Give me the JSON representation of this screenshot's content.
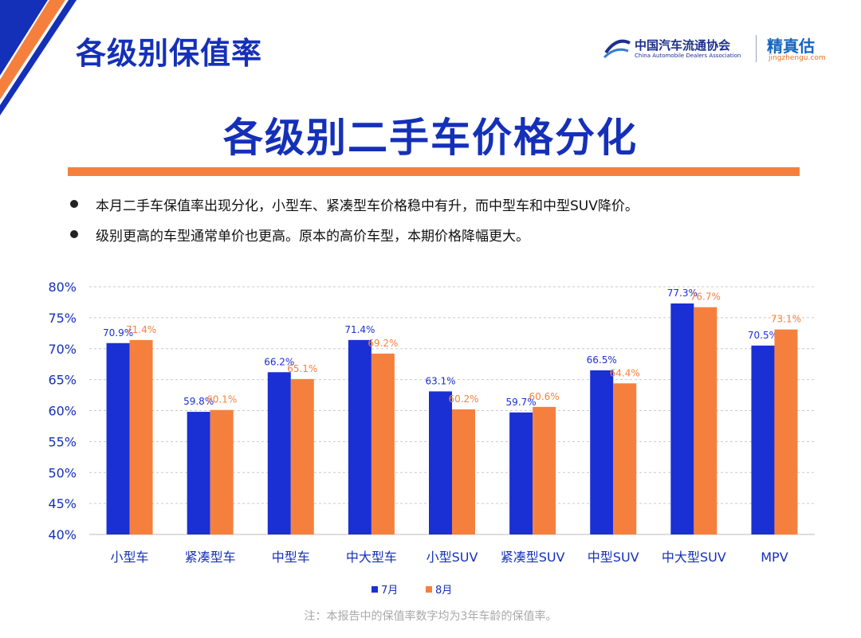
{
  "header": {
    "page_title": "各级别保值率",
    "logo_cada_cn": "中国汽车流通协会",
    "logo_cada_en": "China Automobile Dealers Association",
    "logo_jzg_cn": "精真估",
    "logo_jzg_url": "jingzhengu.com"
  },
  "main_title": "各级别二手车价格分化",
  "bullets": [
    "本月二手车保值率出现分化，小型车、紧凑型车价格稳中有升，而中型车和中型SUV降价。",
    "级别更高的车型通常单价也更高。原本的高价车型，本期价格降幅更大。"
  ],
  "note": "注：本报告中的保值率数字均为3年车龄的保值率。",
  "colors": {
    "brand_blue": "#1530b8",
    "series_july": "#1a2fd4",
    "series_august": "#f5803e",
    "accent_orange": "#f5803e"
  },
  "chart_data": {
    "type": "bar",
    "categories": [
      "小型车",
      "紧凑型车",
      "中型车",
      "中大型车",
      "小型SUV",
      "紧凑型SUV",
      "中型SUV",
      "中大型SUV",
      "MPV"
    ],
    "series": [
      {
        "name": "7月",
        "values": [
          70.9,
          59.8,
          66.2,
          71.4,
          63.1,
          59.7,
          66.5,
          77.3,
          70.5
        ],
        "labels": [
          "70.9%",
          "59.8%",
          "66.2%",
          "71.4%",
          "63.1%",
          "59.7%",
          "66.5%",
          "77.3%",
          "70.5%"
        ]
      },
      {
        "name": "8月",
        "values": [
          71.4,
          60.1,
          65.1,
          69.2,
          60.2,
          60.6,
          64.4,
          76.7,
          73.1
        ],
        "labels": [
          "71.4%",
          "60.1%",
          "65.1%",
          "69.2%",
          "60.2%",
          "60.6%",
          "64.4%",
          "76.7%",
          "73.1%"
        ]
      }
    ],
    "ylim": [
      40,
      80
    ],
    "y_ticks": [
      "40%",
      "45%",
      "50%",
      "55%",
      "60%",
      "65%",
      "70%",
      "75%",
      "80%"
    ],
    "grid": true,
    "legend": "bottom"
  }
}
